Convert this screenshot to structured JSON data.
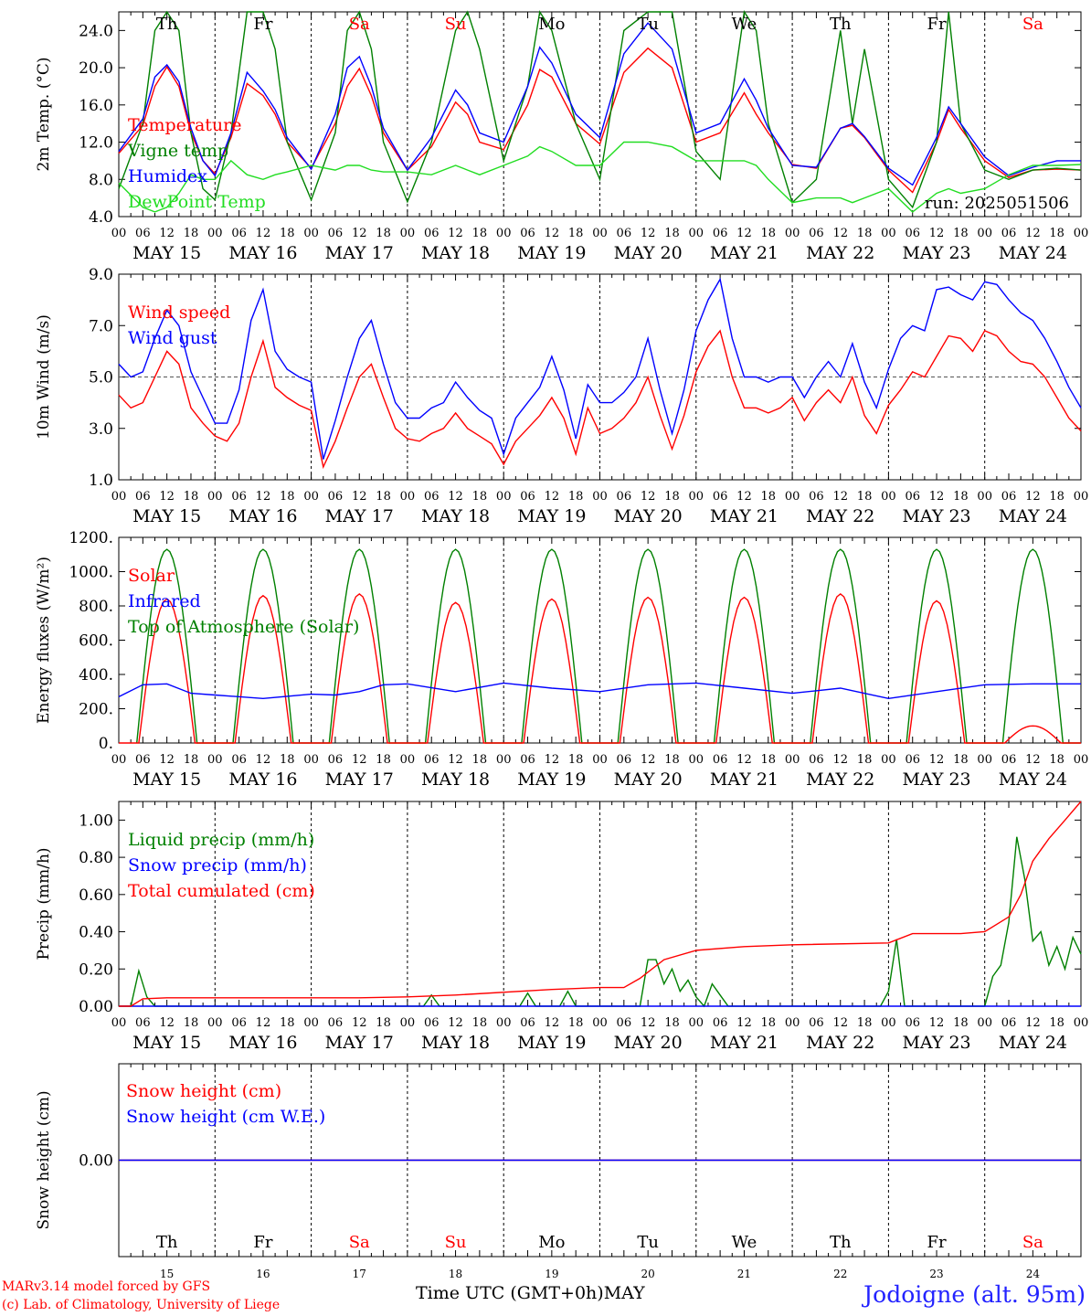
{
  "chart_data": [
    {
      "type": "line",
      "ylabel": "2m Temp. (°C)",
      "ylim": [
        4.0,
        26.0
      ],
      "yticks": [
        4.0,
        8.0,
        12.0,
        16.0,
        20.0,
        24.0
      ],
      "ytick_labels": [
        "4.0",
        "8.0",
        "12.0",
        "16.0",
        "20.0",
        "24.0"
      ],
      "annotation": "run: 2025051506",
      "legend": [
        "Temperature",
        "Vigne temp",
        "Humidex",
        "DewPoint Temp"
      ],
      "x_hours": [
        0,
        6,
        9,
        12,
        15,
        18,
        21,
        24,
        28,
        32,
        36,
        39,
        42,
        48,
        54,
        57,
        60,
        63,
        66,
        72,
        78,
        84,
        87,
        90,
        96,
        102,
        105,
        108,
        114,
        120,
        126,
        132,
        138,
        144,
        150,
        156,
        159,
        162,
        168,
        174,
        180,
        183,
        186,
        192,
        198,
        204,
        207,
        210,
        216,
        222,
        228,
        234,
        240
      ],
      "series": [
        {
          "name": "Temperature",
          "color": "#ff0000",
          "values": [
            10.8,
            13.8,
            18.0,
            20.1,
            18.0,
            13.0,
            10.0,
            8.6,
            12.5,
            18.3,
            17.0,
            15.0,
            12.0,
            9.2,
            14.0,
            18.0,
            19.9,
            17.0,
            13.0,
            9.0,
            11.5,
            16.3,
            15.0,
            12.0,
            11.2,
            16.0,
            19.8,
            19.0,
            14.0,
            11.8,
            19.5,
            22.1,
            20.0,
            12.0,
            13.0,
            17.3,
            15.0,
            13.0,
            9.6,
            9.2,
            13.5,
            13.8,
            12.5,
            9.0,
            6.6,
            12.0,
            15.5,
            13.5,
            10.0,
            8.2,
            9.0,
            9.1,
            9.0
          ]
        },
        {
          "name": "Vigne temp",
          "color": "#008000",
          "values": [
            7.0,
            14.0,
            24.0,
            26.0,
            24.0,
            13.0,
            7.0,
            5.8,
            13.0,
            26.0,
            26.0,
            22.0,
            12.0,
            5.8,
            13.0,
            24.0,
            26.0,
            22.0,
            12.0,
            5.6,
            12.0,
            24.0,
            26.0,
            22.0,
            10.0,
            18.0,
            26.0,
            24.0,
            14.0,
            8.0,
            24.0,
            26.0,
            26.0,
            11.0,
            8.0,
            26.0,
            24.0,
            14.0,
            5.5,
            8.0,
            24.0,
            14.0,
            22.0,
            8.0,
            5.0,
            12.0,
            26.0,
            14.0,
            9.0,
            8.0,
            9.0,
            9.2,
            9.0
          ]
        },
        {
          "name": "Humidex",
          "color": "#0000ff",
          "values": [
            11.0,
            14.5,
            19.0,
            20.3,
            18.5,
            13.5,
            10.0,
            8.4,
            13.0,
            19.5,
            17.5,
            15.5,
            12.5,
            9.1,
            15.0,
            20.0,
            21.2,
            18.0,
            13.5,
            9.0,
            12.5,
            17.6,
            16.0,
            13.0,
            12.0,
            18.0,
            22.2,
            20.5,
            15.0,
            12.5,
            21.5,
            24.8,
            22.0,
            13.0,
            14.0,
            18.8,
            16.5,
            13.5,
            9.5,
            9.3,
            13.5,
            14.0,
            12.6,
            9.2,
            7.4,
            12.5,
            15.8,
            14.0,
            10.4,
            8.4,
            9.3,
            10.0,
            10.0
          ]
        },
        {
          "name": "DewPoint Temp",
          "color": "#22dd22",
          "values": [
            7.6,
            5.0,
            4.5,
            5.0,
            6.5,
            8.5,
            8.0,
            8.0,
            10.0,
            8.5,
            8.0,
            8.5,
            8.8,
            9.5,
            9.0,
            9.5,
            9.5,
            9.0,
            8.8,
            8.8,
            8.5,
            9.5,
            9.0,
            8.5,
            9.5,
            10.5,
            11.5,
            11.0,
            9.5,
            9.5,
            12.0,
            12.0,
            11.5,
            10.0,
            10.0,
            10.0,
            9.5,
            8.0,
            5.5,
            6.0,
            6.0,
            5.5,
            6.0,
            7.0,
            4.5,
            6.5,
            7.0,
            6.5,
            7.0,
            8.5,
            9.5,
            9.5,
            9.6
          ]
        }
      ]
    },
    {
      "type": "line",
      "ylabel": "10m Wind (m/s)",
      "ylim": [
        1.0,
        9.0
      ],
      "yticks": [
        1.0,
        3.0,
        5.0,
        7.0,
        9.0
      ],
      "ytick_labels": [
        "1.0",
        "3.0",
        "5.0",
        "7.0",
        "9.0"
      ],
      "reference_line": 5.0,
      "legend": [
        "Wind speed",
        "Wind gust"
      ],
      "x_hours": [
        0,
        3,
        6,
        9,
        12,
        15,
        18,
        21,
        24,
        27,
        30,
        33,
        36,
        39,
        42,
        45,
        48,
        51,
        54,
        57,
        60,
        63,
        66,
        69,
        72,
        75,
        78,
        81,
        84,
        87,
        90,
        93,
        96,
        99,
        102,
        105,
        108,
        111,
        114,
        117,
        120,
        123,
        126,
        129,
        132,
        135,
        138,
        141,
        144,
        147,
        150,
        153,
        156,
        159,
        162,
        165,
        168,
        171,
        174,
        177,
        180,
        183,
        186,
        189,
        192,
        195,
        198,
        201,
        204,
        207,
        210,
        213,
        216,
        219,
        222,
        225,
        228,
        231,
        234,
        237,
        240
      ],
      "series": [
        {
          "name": "Wind speed",
          "color": "#ff0000",
          "values": [
            4.3,
            3.8,
            4.0,
            5.0,
            6.0,
            5.5,
            3.8,
            3.2,
            2.7,
            2.5,
            3.2,
            5.0,
            6.4,
            4.6,
            4.2,
            3.9,
            3.7,
            1.5,
            2.5,
            3.8,
            5.0,
            5.5,
            4.2,
            3.0,
            2.6,
            2.5,
            2.8,
            3.0,
            3.6,
            3.0,
            2.7,
            2.4,
            1.6,
            2.5,
            3.0,
            3.5,
            4.2,
            3.4,
            2.0,
            3.8,
            2.8,
            3.0,
            3.4,
            4.0,
            5.0,
            3.5,
            2.2,
            3.5,
            5.2,
            6.2,
            6.8,
            5.0,
            3.8,
            3.8,
            3.6,
            3.8,
            4.2,
            3.3,
            4.0,
            4.5,
            4.0,
            5.0,
            3.5,
            2.8,
            3.9,
            4.5,
            5.2,
            5.0,
            5.8,
            6.6,
            6.5,
            6.0,
            6.8,
            6.6,
            6.0,
            5.6,
            5.5,
            5.0,
            4.2,
            3.4,
            2.9
          ]
        },
        {
          "name": "Wind gust",
          "color": "#0000ff",
          "values": [
            5.5,
            5.0,
            5.2,
            6.5,
            7.6,
            7.0,
            5.2,
            4.2,
            3.2,
            3.2,
            4.5,
            7.2,
            8.4,
            6.0,
            5.3,
            5.0,
            4.8,
            1.8,
            3.3,
            5.0,
            6.5,
            7.2,
            5.5,
            4.0,
            3.4,
            3.4,
            3.8,
            4.0,
            4.8,
            4.2,
            3.7,
            3.4,
            2.0,
            3.4,
            4.0,
            4.6,
            5.8,
            4.5,
            2.6,
            4.7,
            4.0,
            4.0,
            4.4,
            5.0,
            6.5,
            4.5,
            2.8,
            4.5,
            6.8,
            8.0,
            8.8,
            6.5,
            5.0,
            5.0,
            4.8,
            5.0,
            5.0,
            4.2,
            5.0,
            5.6,
            5.0,
            6.3,
            4.8,
            3.8,
            5.3,
            6.5,
            7.0,
            6.8,
            8.4,
            8.5,
            8.2,
            8.0,
            8.7,
            8.6,
            8.0,
            7.5,
            7.2,
            6.5,
            5.6,
            4.6,
            3.8
          ]
        }
      ]
    },
    {
      "type": "line",
      "ylabel": "Energy fluxes (W/m²)",
      "ylim": [
        0,
        1200
      ],
      "yticks": [
        0,
        200,
        400,
        600,
        800,
        1000,
        1200
      ],
      "ytick_labels": [
        "0.",
        "200.",
        "400.",
        "600.",
        "800.",
        "1000.",
        "1200."
      ],
      "legend": [
        "Solar",
        "Infrared",
        "Top of Atmosphere (Solar)"
      ],
      "solar_peaks": [
        840,
        860,
        870,
        820,
        840,
        850,
        850,
        870,
        830,
        100
      ],
      "toa_peak": 1130,
      "series": [
        {
          "name": "Infrared",
          "color": "#0000ff",
          "x_hours": [
            0,
            6,
            12,
            18,
            24,
            36,
            48,
            54,
            60,
            66,
            72,
            84,
            96,
            108,
            120,
            132,
            144,
            156,
            168,
            180,
            192,
            204,
            216,
            228,
            240
          ],
          "values": [
            270,
            340,
            345,
            290,
            280,
            260,
            285,
            280,
            300,
            340,
            345,
            300,
            350,
            320,
            300,
            340,
            350,
            320,
            290,
            320,
            260,
            300,
            340,
            345,
            345
          ]
        }
      ]
    },
    {
      "type": "line",
      "ylabel": "Precip (mm/h)",
      "ylim": [
        0,
        1.1
      ],
      "yticks": [
        0,
        0.2,
        0.4,
        0.6,
        0.8,
        1.0
      ],
      "ytick_labels": [
        "0.00",
        "0.20",
        "0.40",
        "0.60",
        "0.80",
        "1.00"
      ],
      "legend": [
        "Liquid precip (mm/h)",
        "Snow precip (mm/h)",
        "Total cumulated (cm)"
      ],
      "series": [
        {
          "name": "Liquid precip (mm/h)",
          "color": "#008000",
          "x_hours": [
            0,
            3,
            5,
            7,
            9,
            12,
            60,
            64,
            66,
            68,
            76,
            78,
            80,
            100,
            102,
            104,
            106,
            110,
            112,
            114,
            130,
            132,
            134,
            136,
            138,
            140,
            142,
            144,
            146,
            148,
            150,
            152,
            154,
            190,
            192,
            194,
            196,
            198,
            200,
            216,
            218,
            220,
            222,
            224,
            226,
            228,
            230,
            232,
            234,
            236,
            238,
            240
          ],
          "values": [
            0.0,
            0.0,
            0.19,
            0.05,
            0.0,
            0.0,
            0.0,
            0.0,
            0.0,
            0.0,
            0.0,
            0.06,
            0.0,
            0.0,
            0.07,
            0.0,
            0.0,
            0.0,
            0.08,
            0.0,
            0.0,
            0.25,
            0.25,
            0.12,
            0.2,
            0.08,
            0.14,
            0.05,
            0.0,
            0.12,
            0.06,
            0.0,
            0.0,
            0.0,
            0.08,
            0.36,
            0.0,
            0.0,
            0.0,
            0.0,
            0.16,
            0.22,
            0.45,
            0.91,
            0.68,
            0.35,
            0.4,
            0.22,
            0.32,
            0.2,
            0.37,
            0.28
          ]
        },
        {
          "name": "Snow precip (mm/h)",
          "color": "#0000ff",
          "x_hours": [
            0,
            240
          ],
          "values": [
            0.0,
            0.0
          ]
        },
        {
          "name": "Total cumulated (cm)",
          "color": "#ff0000",
          "x_hours": [
            0,
            3,
            6,
            12,
            60,
            72,
            84,
            108,
            120,
            126,
            130,
            136,
            144,
            156,
            168,
            192,
            198,
            210,
            216,
            222,
            225,
            228,
            232,
            236,
            240
          ],
          "values": [
            0.0,
            0.0,
            0.04,
            0.045,
            0.045,
            0.05,
            0.06,
            0.09,
            0.1,
            0.1,
            0.15,
            0.25,
            0.3,
            0.32,
            0.33,
            0.34,
            0.39,
            0.39,
            0.4,
            0.48,
            0.6,
            0.78,
            0.9,
            1.0,
            1.1
          ]
        }
      ]
    },
    {
      "type": "line",
      "ylabel": "Snow height (cm)",
      "yticks": [
        0
      ],
      "ytick_labels": [
        "0.00"
      ],
      "legend": [
        "Snow height (cm)",
        "Snow height (cm W.E.)"
      ],
      "series": [
        {
          "name": "Snow height (cm)",
          "color": "#ff0000",
          "x_hours": [
            0,
            240
          ],
          "values": [
            0.0,
            0.0
          ]
        },
        {
          "name": "Snow height (cm W.E.)",
          "color": "#0000ff",
          "x_hours": [
            0,
            240
          ],
          "values": [
            0.0,
            0.0
          ]
        }
      ]
    }
  ],
  "x_axis": {
    "hour_ticks": [
      "00",
      "06",
      "12",
      "18"
    ],
    "end_tick": "00",
    "day_labels": [
      "MAY 15",
      "MAY 16",
      "MAY 17",
      "MAY 18",
      "MAY 19",
      "MAY 20",
      "MAY 21",
      "MAY 22",
      "MAY 23",
      "MAY 24"
    ],
    "weekdays": [
      "Th",
      "Fr",
      "Sa",
      "Su",
      "Mo",
      "Tu",
      "We",
      "Th",
      "Fr",
      "Sa"
    ],
    "weekend_flags": [
      false,
      false,
      true,
      true,
      false,
      false,
      false,
      false,
      false,
      true
    ],
    "day_numbers": [
      "15",
      "16",
      "17",
      "18",
      "19",
      "20",
      "21",
      "22",
      "23",
      "24"
    ],
    "title": "Time UTC (GMT+0h)",
    "month": "MAY"
  },
  "footer": {
    "credit_line1": "MARv3.14 model forced by GFS",
    "credit_line2": "(c) Lab. of Climatology, University of Liege",
    "station": "Jodoigne (alt. 95m)"
  },
  "colors": {
    "weekend": "#ff0000",
    "weekday": "#000000",
    "station": "#2222ff",
    "credit": "#ff0000"
  }
}
